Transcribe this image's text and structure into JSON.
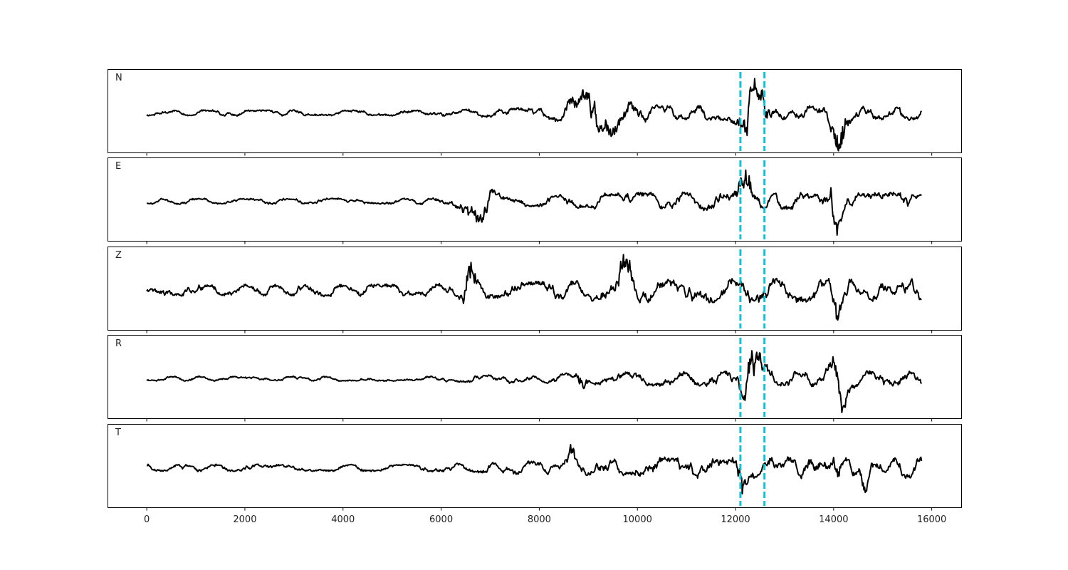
{
  "chart_data": {
    "type": "line",
    "xlim": [
      -800,
      16600
    ],
    "x_ticks": [
      "0",
      "2000",
      "4000",
      "6000",
      "8000",
      "10000",
      "12000",
      "14000",
      "16000"
    ],
    "x_tick_values": [
      0,
      2000,
      4000,
      6000,
      8000,
      10000,
      12000,
      14000,
      16000
    ],
    "picks": [
      12100,
      12590
    ],
    "pick_color": "#17becf",
    "trace_color": "#000000",
    "trace_x_range": [
      0,
      15800
    ],
    "panels": [
      {
        "label": "N",
        "bursts": [
          [
            8600,
            9800,
            0.7
          ],
          [
            12100,
            12600,
            1.1
          ],
          [
            13950,
            14250,
            1.1
          ]
        ],
        "base": 0.1,
        "mid": 0.25
      },
      {
        "label": "E",
        "bursts": [
          [
            6400,
            7100,
            0.55
          ],
          [
            12080,
            12300,
            1.0
          ],
          [
            13950,
            14150,
            1.2
          ]
        ],
        "base": 0.1,
        "mid": 0.3
      },
      {
        "label": "Z",
        "bursts": [
          [
            6450,
            6700,
            1.0
          ],
          [
            9600,
            9900,
            0.85
          ],
          [
            14000,
            14100,
            0.8
          ]
        ],
        "base": 0.2,
        "mid": 0.4
      },
      {
        "label": "R",
        "bursts": [
          [
            8800,
            8900,
            0.5
          ],
          [
            12100,
            12600,
            0.9
          ],
          [
            13950,
            14300,
            1.1
          ]
        ],
        "base": 0.08,
        "mid": 0.25
      },
      {
        "label": "T",
        "bursts": [
          [
            8600,
            8700,
            0.5
          ],
          [
            12100,
            12200,
            0.9
          ],
          [
            14000,
            14100,
            1.0
          ],
          [
            14600,
            14700,
            0.8
          ]
        ],
        "base": 0.12,
        "mid": 0.35
      }
    ]
  }
}
